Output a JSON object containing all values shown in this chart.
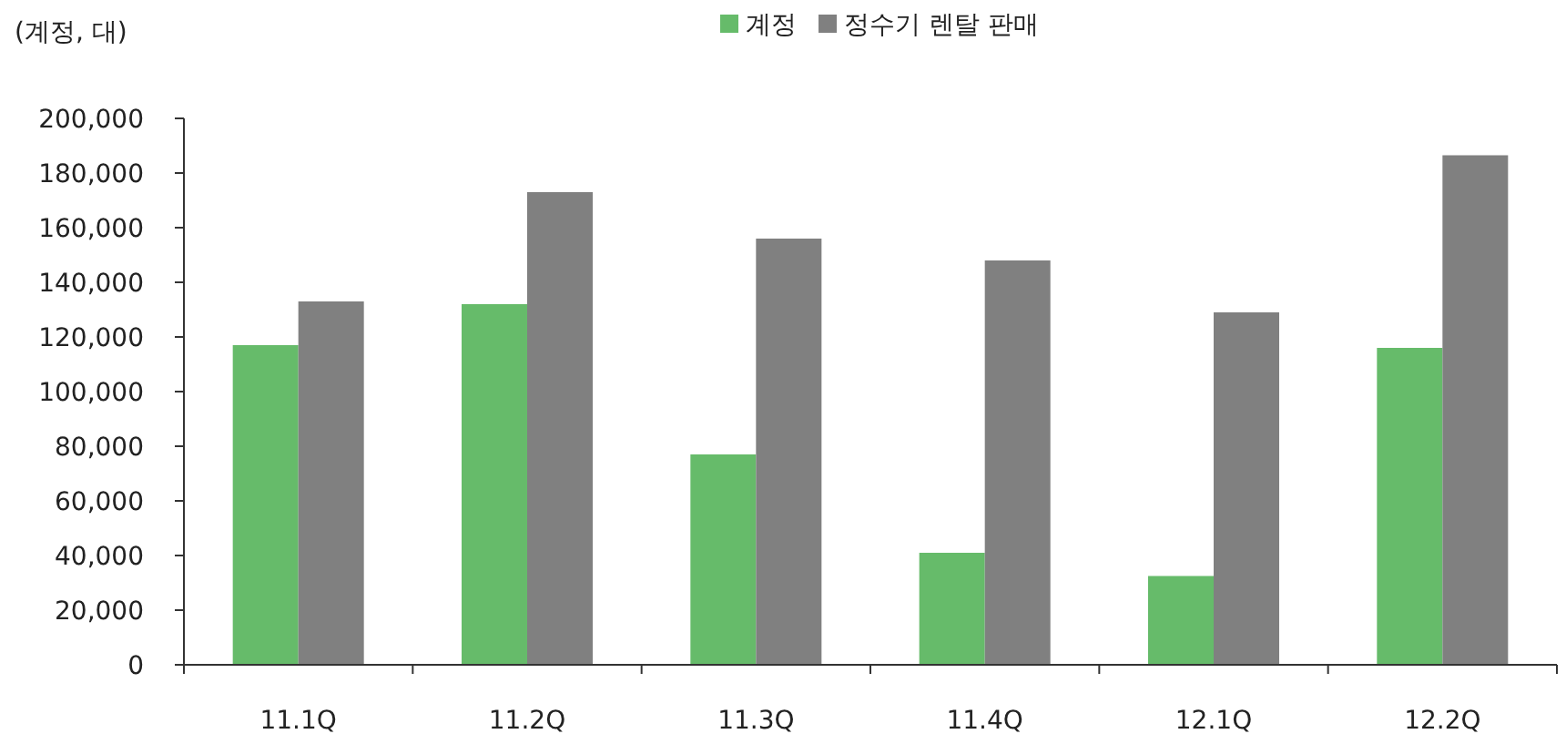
{
  "chart_data": {
    "type": "bar",
    "ylabel": "(계정, 대)",
    "categories": [
      "11.1Q",
      "11.2Q",
      "11.3Q",
      "11.4Q",
      "12.1Q",
      "12.2Q"
    ],
    "series": [
      {
        "name": "계정",
        "color": "#66bb6a",
        "values": [
          117000,
          132000,
          77000,
          41000,
          32500,
          116000
        ]
      },
      {
        "name": "정수기 렌탈 판매",
        "color": "#808080",
        "values": [
          133000,
          173000,
          156000,
          148000,
          129000,
          186500
        ]
      }
    ],
    "ylim": [
      0,
      200000
    ],
    "yticks": [
      {
        "value": 0,
        "label": "0"
      },
      {
        "value": 20000,
        "label": "20,000"
      },
      {
        "value": 40000,
        "label": "40,000"
      },
      {
        "value": 60000,
        "label": "60,000"
      },
      {
        "value": 80000,
        "label": "80,000"
      },
      {
        "value": 100000,
        "label": "100,000"
      },
      {
        "value": 120000,
        "label": "120,000"
      },
      {
        "value": 140000,
        "label": "140,000"
      },
      {
        "value": 160000,
        "label": "160,000"
      },
      {
        "value": 180000,
        "label": "180,000"
      },
      {
        "value": 200000,
        "label": "200,000"
      }
    ],
    "grid": false,
    "legend": "top"
  }
}
